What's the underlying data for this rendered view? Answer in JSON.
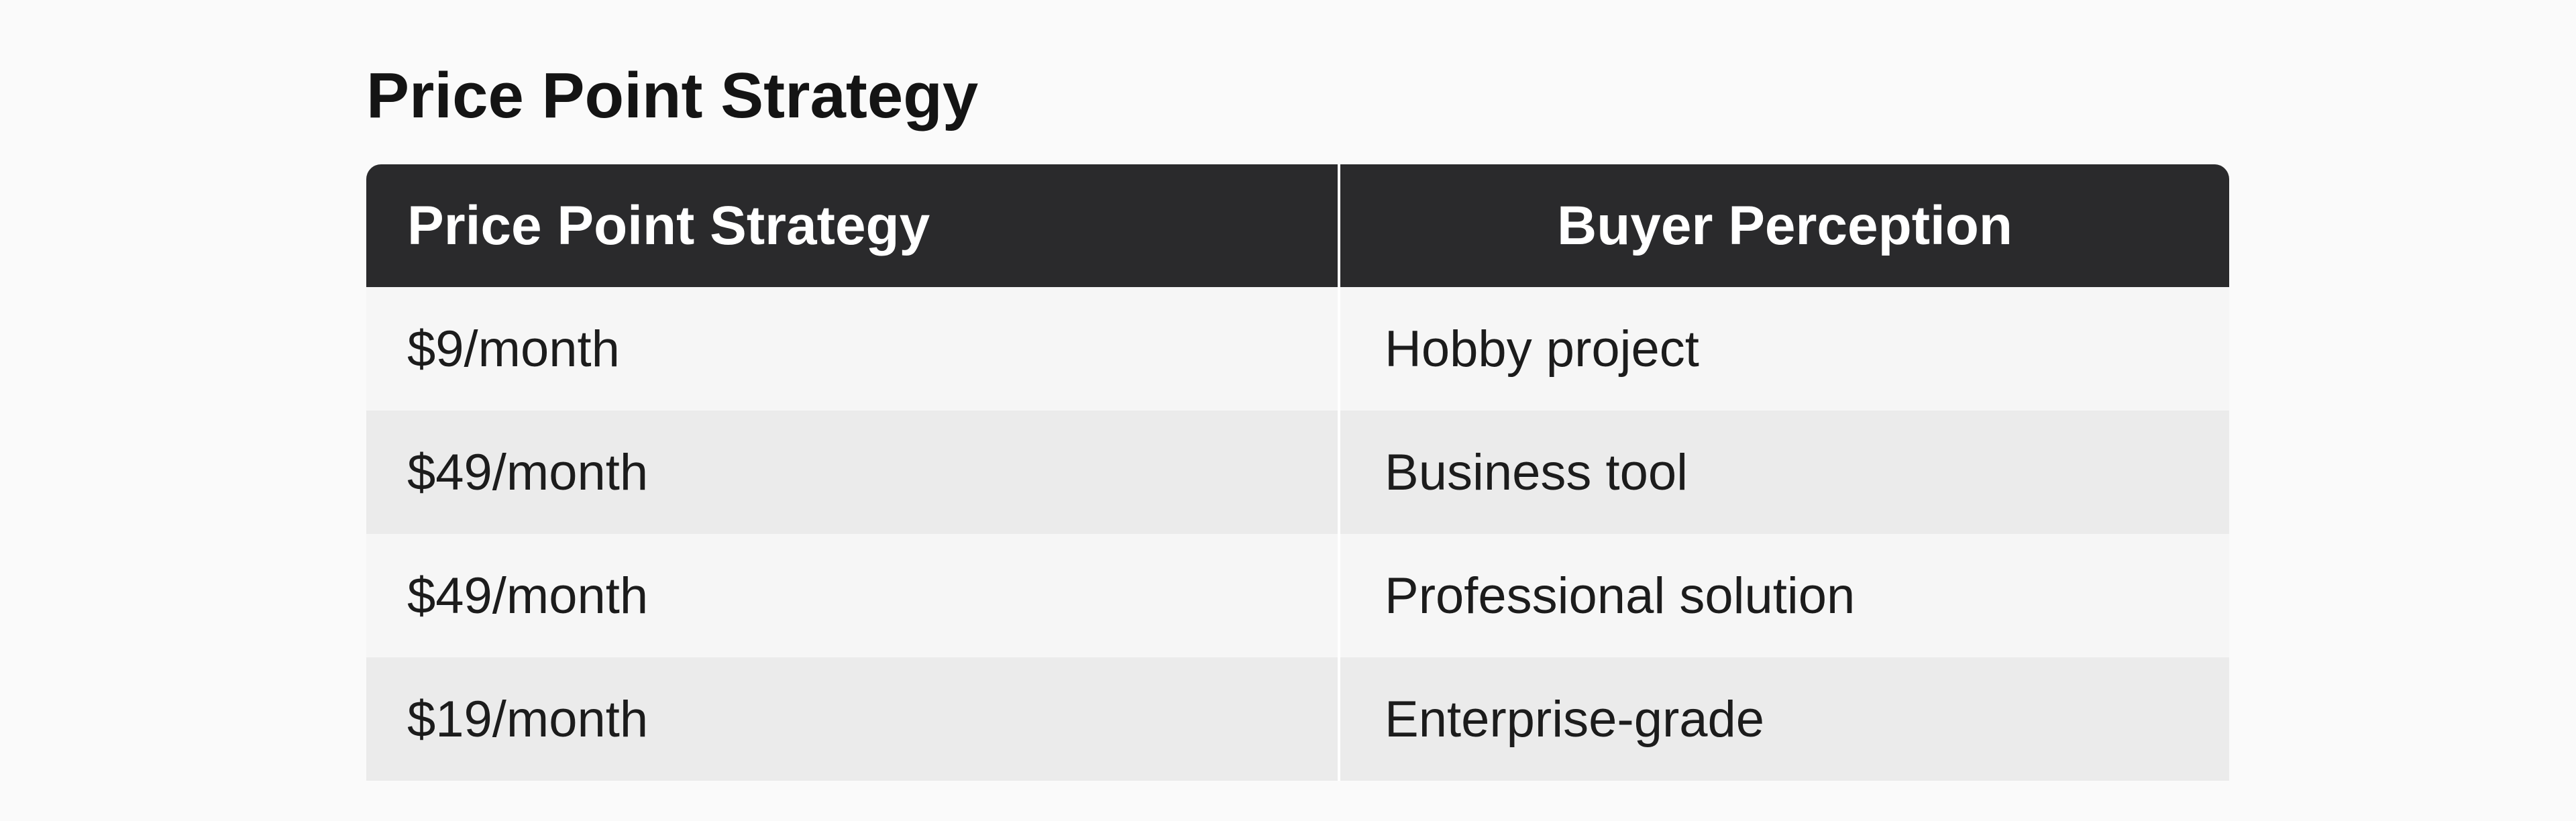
{
  "header": {
    "title": "Price Point Strategy"
  },
  "table": {
    "columns": [
      "Price Point Strategy",
      "Buyer Perception"
    ],
    "rows": [
      [
        "$9/month",
        "Hobby project"
      ],
      [
        "$49/month",
        "Business tool"
      ],
      [
        "$49/month",
        "Professional solution"
      ],
      [
        "$19/month",
        "Enterprise-grade"
      ]
    ]
  }
}
